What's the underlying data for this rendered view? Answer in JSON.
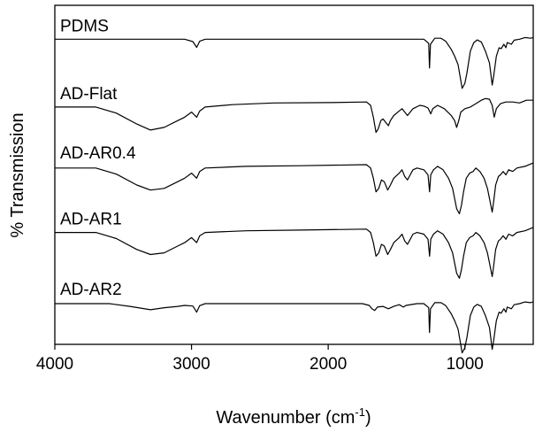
{
  "chart_data": {
    "type": "line",
    "title": "",
    "xlabel": {
      "text": "Wavenumber (cm",
      "superscript": "-1",
      "suffix": ")"
    },
    "ylabel": "% Transmission",
    "xlim": [
      4000,
      500
    ],
    "x_reversed": true,
    "x_ticks": [
      4000,
      3000,
      2000,
      1000
    ],
    "y_ticks": [],
    "grid": false,
    "legend": "none",
    "series": [
      {
        "name": "PDMS",
        "offset": 0.9,
        "points": [
          [
            4000,
            0
          ],
          [
            3050,
            0
          ],
          [
            2990,
            -0.7
          ],
          [
            2962,
            -2.4
          ],
          [
            2940,
            -0.6
          ],
          [
            2900,
            0
          ],
          [
            1500,
            0
          ],
          [
            1300,
            0
          ],
          [
            1265,
            -1.2
          ],
          [
            1259,
            -8.5
          ],
          [
            1252,
            -1.5
          ],
          [
            1220,
            0.3
          ],
          [
            1175,
            0.3
          ],
          [
            1140,
            -0.6
          ],
          [
            1100,
            -3
          ],
          [
            1075,
            -5
          ],
          [
            1050,
            -7.5
          ],
          [
            1020,
            -14.5
          ],
          [
            1000,
            -13
          ],
          [
            985,
            -10
          ],
          [
            960,
            -3.5
          ],
          [
            935,
            -1
          ],
          [
            910,
            -0.2
          ],
          [
            880,
            -0.8
          ],
          [
            850,
            -3.5
          ],
          [
            820,
            -7
          ],
          [
            800,
            -13.5
          ],
          [
            790,
            -11
          ],
          [
            770,
            -5
          ],
          [
            750,
            -2.5
          ],
          [
            735,
            -2.8
          ],
          [
            715,
            -1.5
          ],
          [
            700,
            -2.5
          ],
          [
            690,
            -1
          ],
          [
            660,
            -1.5
          ],
          [
            640,
            -0.3
          ],
          [
            600,
            0
          ],
          [
            560,
            0.5
          ],
          [
            520,
            0.3
          ],
          [
            500,
            0.5
          ]
        ]
      },
      {
        "name": "AD-Flat",
        "offset": 0.7,
        "points": [
          [
            4000,
            0
          ],
          [
            3700,
            0
          ],
          [
            3550,
            -1.8
          ],
          [
            3400,
            -5
          ],
          [
            3300,
            -6.8
          ],
          [
            3200,
            -6
          ],
          [
            3100,
            -4
          ],
          [
            3050,
            -3
          ],
          [
            3000,
            -1.5
          ],
          [
            2962,
            -3
          ],
          [
            2940,
            -1.2
          ],
          [
            2900,
            0
          ],
          [
            2700,
            0.7
          ],
          [
            2400,
            1.2
          ],
          [
            2000,
            1.3
          ],
          [
            1720,
            1.5
          ],
          [
            1690,
            0.5
          ],
          [
            1670,
            -3
          ],
          [
            1650,
            -7.5
          ],
          [
            1635,
            -6.5
          ],
          [
            1615,
            -4
          ],
          [
            1600,
            -3.5
          ],
          [
            1580,
            -4.5
          ],
          [
            1560,
            -5.5
          ],
          [
            1545,
            -4
          ],
          [
            1520,
            -2.5
          ],
          [
            1490,
            -1.5
          ],
          [
            1460,
            -0.5
          ],
          [
            1440,
            -1.5
          ],
          [
            1420,
            -2.5
          ],
          [
            1400,
            -1.5
          ],
          [
            1380,
            -0.5
          ],
          [
            1330,
            0.5
          ],
          [
            1300,
            0.3
          ],
          [
            1270,
            -0.3
          ],
          [
            1250,
            -2
          ],
          [
            1235,
            -0.5
          ],
          [
            1200,
            0.5
          ],
          [
            1150,
            -0.5
          ],
          [
            1100,
            -2.5
          ],
          [
            1075,
            -4
          ],
          [
            1060,
            -6
          ],
          [
            1045,
            -4
          ],
          [
            1030,
            -1.5
          ],
          [
            1000,
            -0.5
          ],
          [
            960,
            0
          ],
          [
            920,
            1
          ],
          [
            880,
            2
          ],
          [
            850,
            2.5
          ],
          [
            820,
            2.3
          ],
          [
            800,
            0.5
          ],
          [
            785,
            -3
          ],
          [
            770,
            -0.5
          ],
          [
            740,
            1
          ],
          [
            700,
            1.5
          ],
          [
            650,
            1.5
          ],
          [
            600,
            1.2
          ],
          [
            550,
            2
          ],
          [
            500,
            2
          ]
        ]
      },
      {
        "name": "AD-AR0.4",
        "offset": 0.52,
        "points": [
          [
            4000,
            0
          ],
          [
            3700,
            0
          ],
          [
            3550,
            -1.8
          ],
          [
            3400,
            -5
          ],
          [
            3300,
            -6.5
          ],
          [
            3200,
            -6
          ],
          [
            3100,
            -4
          ],
          [
            3050,
            -3
          ],
          [
            3000,
            -1.5
          ],
          [
            2962,
            -3
          ],
          [
            2940,
            -1
          ],
          [
            2900,
            0
          ],
          [
            2600,
            0.5
          ],
          [
            2200,
            0.7
          ],
          [
            1720,
            1
          ],
          [
            1690,
            0
          ],
          [
            1670,
            -3
          ],
          [
            1650,
            -7
          ],
          [
            1630,
            -6
          ],
          [
            1610,
            -3.5
          ],
          [
            1590,
            -4
          ],
          [
            1565,
            -6.5
          ],
          [
            1545,
            -5
          ],
          [
            1520,
            -3
          ],
          [
            1480,
            -1.5
          ],
          [
            1460,
            -0.5
          ],
          [
            1440,
            -2.5
          ],
          [
            1420,
            -3.5
          ],
          [
            1400,
            -2
          ],
          [
            1380,
            -0.5
          ],
          [
            1350,
            0
          ],
          [
            1300,
            -0.5
          ],
          [
            1270,
            -2
          ],
          [
            1258,
            -7
          ],
          [
            1250,
            -2
          ],
          [
            1230,
            -0.5
          ],
          [
            1200,
            0.5
          ],
          [
            1160,
            -0.5
          ],
          [
            1120,
            -3
          ],
          [
            1090,
            -6
          ],
          [
            1060,
            -12
          ],
          [
            1040,
            -13.5
          ],
          [
            1025,
            -11
          ],
          [
            1010,
            -7
          ],
          [
            990,
            -3
          ],
          [
            965,
            -1.5
          ],
          [
            940,
            -1
          ],
          [
            920,
            0
          ],
          [
            890,
            -1
          ],
          [
            860,
            -3
          ],
          [
            835,
            -6
          ],
          [
            815,
            -10
          ],
          [
            800,
            -13
          ],
          [
            790,
            -10
          ],
          [
            775,
            -5
          ],
          [
            755,
            -2.5
          ],
          [
            740,
            -2
          ],
          [
            720,
            -1
          ],
          [
            700,
            -2
          ],
          [
            680,
            -0.5
          ],
          [
            650,
            -1
          ],
          [
            620,
            0
          ],
          [
            560,
            0.5
          ],
          [
            500,
            1.5
          ]
        ]
      },
      {
        "name": "AD-AR1",
        "offset": 0.33,
        "points": [
          [
            4000,
            0
          ],
          [
            3700,
            0
          ],
          [
            3550,
            -1.8
          ],
          [
            3400,
            -5
          ],
          [
            3300,
            -6.5
          ],
          [
            3200,
            -6
          ],
          [
            3100,
            -4
          ],
          [
            3050,
            -3
          ],
          [
            3000,
            -1.5
          ],
          [
            2962,
            -3
          ],
          [
            2940,
            -1
          ],
          [
            2900,
            0
          ],
          [
            2600,
            0.5
          ],
          [
            2200,
            0.7
          ],
          [
            1720,
            1
          ],
          [
            1690,
            0
          ],
          [
            1670,
            -3
          ],
          [
            1650,
            -7
          ],
          [
            1630,
            -6
          ],
          [
            1610,
            -3.5
          ],
          [
            1590,
            -4
          ],
          [
            1565,
            -6.5
          ],
          [
            1545,
            -5
          ],
          [
            1520,
            -3
          ],
          [
            1480,
            -1.5
          ],
          [
            1460,
            -0.5
          ],
          [
            1440,
            -2.5
          ],
          [
            1420,
            -3.5
          ],
          [
            1400,
            -2
          ],
          [
            1380,
            -0.5
          ],
          [
            1350,
            0
          ],
          [
            1300,
            -0.5
          ],
          [
            1270,
            -2
          ],
          [
            1258,
            -7
          ],
          [
            1250,
            -2
          ],
          [
            1230,
            -0.5
          ],
          [
            1200,
            0.5
          ],
          [
            1160,
            -0.5
          ],
          [
            1120,
            -3
          ],
          [
            1090,
            -6
          ],
          [
            1060,
            -12
          ],
          [
            1040,
            -13.5
          ],
          [
            1025,
            -11
          ],
          [
            1010,
            -7
          ],
          [
            990,
            -3
          ],
          [
            965,
            -1.5
          ],
          [
            940,
            -1
          ],
          [
            920,
            0
          ],
          [
            890,
            -1
          ],
          [
            860,
            -3
          ],
          [
            835,
            -6
          ],
          [
            815,
            -10
          ],
          [
            800,
            -13
          ],
          [
            790,
            -10
          ],
          [
            775,
            -5
          ],
          [
            755,
            -2.5
          ],
          [
            740,
            -2
          ],
          [
            720,
            -1
          ],
          [
            700,
            -2
          ],
          [
            680,
            -0.5
          ],
          [
            650,
            -1
          ],
          [
            620,
            0
          ],
          [
            560,
            0.5
          ],
          [
            500,
            1.5
          ]
        ]
      },
      {
        "name": "AD-AR2",
        "offset": 0.12,
        "points": [
          [
            4000,
            0
          ],
          [
            3600,
            0
          ],
          [
            3450,
            -0.8
          ],
          [
            3300,
            -1.8
          ],
          [
            3200,
            -1.2
          ],
          [
            3100,
            -0.8
          ],
          [
            3050,
            -0.5
          ],
          [
            2990,
            -0.7
          ],
          [
            2962,
            -2.5
          ],
          [
            2940,
            -0.6
          ],
          [
            2900,
            0
          ],
          [
            1750,
            0
          ],
          [
            1700,
            -0.5
          ],
          [
            1680,
            -1.5
          ],
          [
            1660,
            -2
          ],
          [
            1640,
            -1
          ],
          [
            1600,
            -0.8
          ],
          [
            1560,
            -1.5
          ],
          [
            1520,
            -0.8
          ],
          [
            1480,
            -0.3
          ],
          [
            1450,
            -1
          ],
          [
            1430,
            -0.5
          ],
          [
            1350,
            0
          ],
          [
            1300,
            0
          ],
          [
            1265,
            -1.2
          ],
          [
            1259,
            -8.5
          ],
          [
            1252,
            -1.5
          ],
          [
            1220,
            0.3
          ],
          [
            1175,
            0.3
          ],
          [
            1140,
            -0.6
          ],
          [
            1100,
            -3
          ],
          [
            1075,
            -5
          ],
          [
            1050,
            -7.5
          ],
          [
            1020,
            -14.5
          ],
          [
            1000,
            -13
          ],
          [
            985,
            -10
          ],
          [
            960,
            -3.5
          ],
          [
            935,
            -1
          ],
          [
            910,
            -0.2
          ],
          [
            880,
            -0.8
          ],
          [
            850,
            -3.5
          ],
          [
            820,
            -7
          ],
          [
            800,
            -13.5
          ],
          [
            790,
            -11
          ],
          [
            770,
            -5
          ],
          [
            750,
            -2.5
          ],
          [
            735,
            -2.8
          ],
          [
            715,
            -1.5
          ],
          [
            700,
            -2.5
          ],
          [
            690,
            -1
          ],
          [
            660,
            -1.5
          ],
          [
            640,
            -0.3
          ],
          [
            600,
            0
          ],
          [
            560,
            0.5
          ],
          [
            520,
            0.3
          ],
          [
            500,
            0.5
          ]
        ]
      }
    ]
  }
}
